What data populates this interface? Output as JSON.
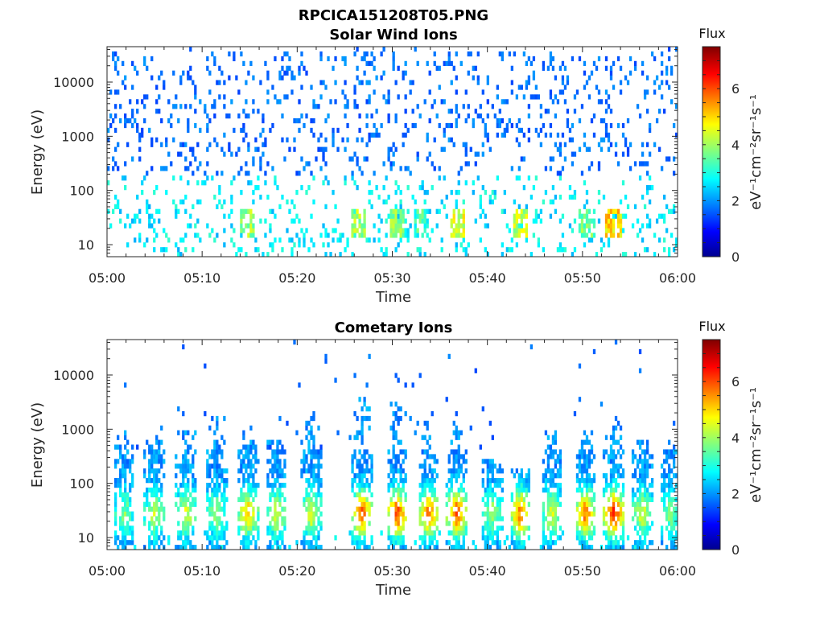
{
  "figure_title": "RPCICA151208T05.PNG",
  "chart_data": [
    {
      "type": "heatmap",
      "title": "Solar Wind Ions",
      "xlabel": "Time",
      "ylabel": "Energy (eV)",
      "x_ticks": [
        "05:00",
        "05:10",
        "05:20",
        "05:30",
        "05:40",
        "05:50",
        "06:00"
      ],
      "x_range_minutes": [
        0,
        60
      ],
      "y_scale": "log",
      "y_range": [
        6,
        45000
      ],
      "y_ticks": [
        10,
        100,
        1000,
        10000
      ],
      "colorbar": {
        "title": "Flux",
        "label": "eV⁻¹cm⁻²sr⁻¹s⁻¹",
        "range": [
          0,
          7.5
        ],
        "ticks": [
          0,
          2,
          4,
          6
        ],
        "colormap": "jet"
      },
      "bursts": [
        {
          "t": 26.5,
          "f": 4.6
        },
        {
          "t": 30.5,
          "f": 4.4
        },
        {
          "t": 33.0,
          "f": 3.8
        },
        {
          "t": 36.8,
          "f": 5.0
        },
        {
          "t": 43.5,
          "f": 4.8
        },
        {
          "t": 50.5,
          "f": 4.2
        },
        {
          "t": 53.3,
          "f": 5.5
        },
        {
          "t": 14.8,
          "f": 4.5
        }
      ]
    },
    {
      "type": "heatmap",
      "title": "Cometary Ions",
      "xlabel": "Time",
      "ylabel": "Energy (eV)",
      "x_ticks": [
        "05:00",
        "05:10",
        "05:20",
        "05:30",
        "05:40",
        "05:50",
        "06:00"
      ],
      "x_range_minutes": [
        0,
        60
      ],
      "y_scale": "log",
      "y_range": [
        6,
        45000
      ],
      "y_ticks": [
        10,
        100,
        1000,
        10000
      ],
      "colorbar": {
        "title": "Flux",
        "label": "eV⁻¹cm⁻²sr⁻¹s⁻¹",
        "range": [
          0,
          7.5
        ],
        "ticks": [
          0,
          2,
          4,
          6
        ],
        "colormap": "jet"
      },
      "bursts": [
        {
          "t": 1.8,
          "f": 3.8,
          "top": 900
        },
        {
          "t": 5.0,
          "f": 4.2,
          "top": 700
        },
        {
          "t": 8.3,
          "f": 4.5,
          "top": 1200
        },
        {
          "t": 11.5,
          "f": 4.0,
          "top": 1800
        },
        {
          "t": 14.8,
          "f": 5.2,
          "top": 1100
        },
        {
          "t": 17.8,
          "f": 4.5,
          "top": 700
        },
        {
          "t": 21.5,
          "f": 4.6,
          "top": 2200
        },
        {
          "t": 26.8,
          "f": 6.0,
          "top": 4000
        },
        {
          "t": 30.5,
          "f": 6.2,
          "top": 3000
        },
        {
          "t": 33.8,
          "f": 5.8,
          "top": 1500
        },
        {
          "t": 36.8,
          "f": 6.0,
          "top": 1300
        },
        {
          "t": 40.5,
          "f": 4.0,
          "top": 300
        },
        {
          "t": 43.5,
          "f": 5.8,
          "top": 200
        },
        {
          "t": 46.8,
          "f": 4.5,
          "top": 900
        },
        {
          "t": 50.3,
          "f": 5.8,
          "top": 1000
        },
        {
          "t": 53.3,
          "f": 6.6,
          "top": 1100
        },
        {
          "t": 56.3,
          "f": 4.5,
          "top": 600
        },
        {
          "t": 59.2,
          "f": 3.8,
          "top": 600
        }
      ]
    }
  ]
}
